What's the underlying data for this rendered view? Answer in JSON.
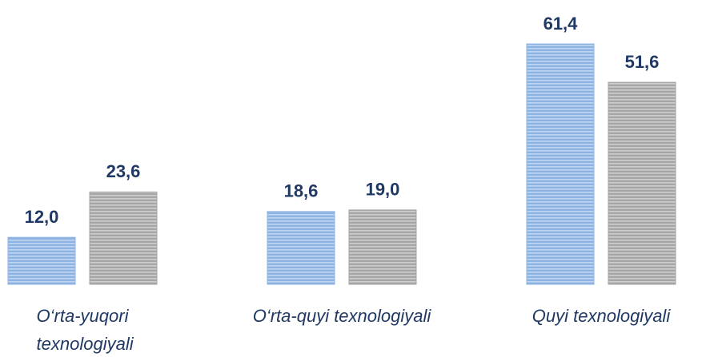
{
  "chart_data": {
    "type": "bar",
    "categories": [
      "O‘rta-yuqori texnologiyali",
      "O‘rta-quyi texnologiyali",
      "Quyi texnologiyali"
    ],
    "series": [
      {
        "color": "#8db3e2",
        "values": [
          12.0,
          18.6,
          61.4
        ],
        "value_labels": [
          "12,0",
          "18,6",
          "61,4"
        ]
      },
      {
        "color": "#a6a6a6",
        "values": [
          23.6,
          19.0,
          51.6
        ],
        "value_labels": [
          "23,6",
          "19,0",
          "51,6"
        ]
      }
    ]
  }
}
